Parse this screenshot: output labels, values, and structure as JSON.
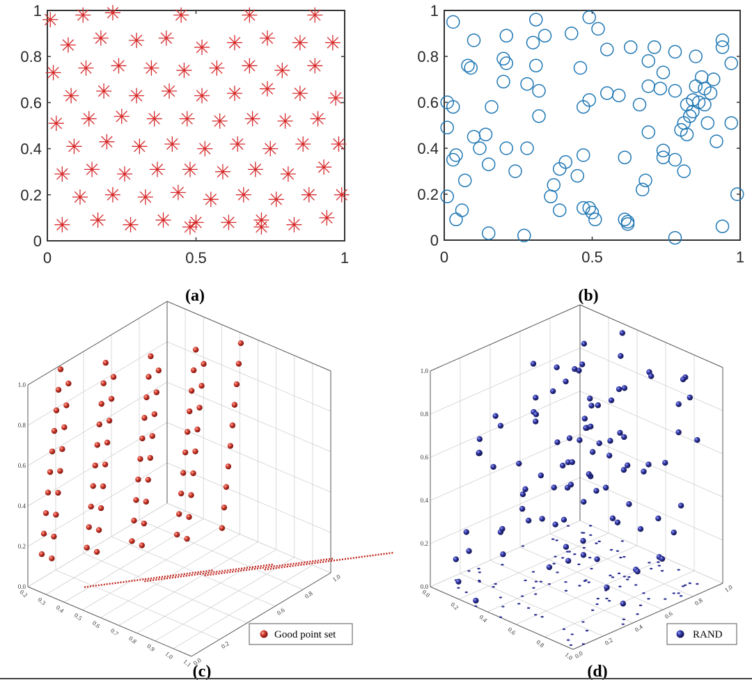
{
  "colors": {
    "star": "#d62728",
    "circle": "#1f77b4",
    "ball_red": "#c0261f",
    "ball_blue": "#2c2f8f"
  },
  "chart_data": [
    {
      "panel": "a",
      "caption": "(a)",
      "type": "scatter",
      "marker": "asterisk",
      "xlim": [
        0,
        1
      ],
      "ylim": [
        0,
        1
      ],
      "xticks": [
        "0",
        "0.5",
        "1"
      ],
      "yticks": [
        "0",
        "0.2",
        "0.4",
        "0.6",
        "0.8",
        "1"
      ],
      "points": [
        [
          0.01,
          0.96
        ],
        [
          0.12,
          0.98
        ],
        [
          0.22,
          0.99
        ],
        [
          0.45,
          0.98
        ],
        [
          0.68,
          0.98
        ],
        [
          0.9,
          0.98
        ],
        [
          0.07,
          0.85
        ],
        [
          0.18,
          0.88
        ],
        [
          0.3,
          0.87
        ],
        [
          0.4,
          0.88
        ],
        [
          0.52,
          0.84
        ],
        [
          0.63,
          0.86
        ],
        [
          0.74,
          0.88
        ],
        [
          0.85,
          0.86
        ],
        [
          0.96,
          0.86
        ],
        [
          0.02,
          0.73
        ],
        [
          0.13,
          0.75
        ],
        [
          0.24,
          0.76
        ],
        [
          0.35,
          0.75
        ],
        [
          0.46,
          0.74
        ],
        [
          0.57,
          0.75
        ],
        [
          0.68,
          0.76
        ],
        [
          0.79,
          0.74
        ],
        [
          0.9,
          0.76
        ],
        [
          0.08,
          0.63
        ],
        [
          0.19,
          0.65
        ],
        [
          0.3,
          0.63
        ],
        [
          0.41,
          0.65
        ],
        [
          0.52,
          0.63
        ],
        [
          0.63,
          0.64
        ],
        [
          0.74,
          0.66
        ],
        [
          0.85,
          0.64
        ],
        [
          0.97,
          0.62
        ],
        [
          0.03,
          0.51
        ],
        [
          0.14,
          0.53
        ],
        [
          0.25,
          0.54
        ],
        [
          0.36,
          0.53
        ],
        [
          0.47,
          0.53
        ],
        [
          0.58,
          0.52
        ],
        [
          0.69,
          0.53
        ],
        [
          0.8,
          0.52
        ],
        [
          0.91,
          0.53
        ],
        [
          0.09,
          0.41
        ],
        [
          0.2,
          0.43
        ],
        [
          0.31,
          0.41
        ],
        [
          0.42,
          0.42
        ],
        [
          0.53,
          0.4
        ],
        [
          0.64,
          0.42
        ],
        [
          0.75,
          0.4
        ],
        [
          0.86,
          0.42
        ],
        [
          0.98,
          0.42
        ],
        [
          0.05,
          0.29
        ],
        [
          0.15,
          0.31
        ],
        [
          0.26,
          0.29
        ],
        [
          0.37,
          0.31
        ],
        [
          0.48,
          0.31
        ],
        [
          0.59,
          0.3
        ],
        [
          0.7,
          0.31
        ],
        [
          0.81,
          0.29
        ],
        [
          0.93,
          0.32
        ],
        [
          0.11,
          0.19
        ],
        [
          0.22,
          0.2
        ],
        [
          0.33,
          0.19
        ],
        [
          0.44,
          0.21
        ],
        [
          0.55,
          0.18
        ],
        [
          0.66,
          0.2
        ],
        [
          0.77,
          0.18
        ],
        [
          0.88,
          0.2
        ],
        [
          0.99,
          0.2
        ],
        [
          0.05,
          0.07
        ],
        [
          0.17,
          0.09
        ],
        [
          0.28,
          0.07
        ],
        [
          0.39,
          0.09
        ],
        [
          0.5,
          0.08
        ],
        [
          0.61,
          0.08
        ],
        [
          0.72,
          0.09
        ],
        [
          0.83,
          0.07
        ],
        [
          0.94,
          0.1
        ],
        [
          0.48,
          0.06
        ],
        [
          0.72,
          0.06
        ]
      ]
    },
    {
      "panel": "b",
      "caption": "(b)",
      "type": "scatter",
      "marker": "circle",
      "xlim": [
        0,
        1
      ],
      "ylim": [
        0,
        1
      ],
      "xticks": [
        "0",
        "0.5",
        "1"
      ],
      "yticks": [
        "0",
        "0.2",
        "0.4",
        "0.6",
        "0.8",
        "1"
      ],
      "points": [
        [
          0.03,
          0.95
        ],
        [
          0.31,
          0.96
        ],
        [
          0.49,
          0.97
        ],
        [
          0.21,
          0.89
        ],
        [
          0.1,
          0.87
        ],
        [
          0.43,
          0.9
        ],
        [
          0.52,
          0.92
        ],
        [
          0.34,
          0.89
        ],
        [
          0.94,
          0.87
        ],
        [
          0.3,
          0.86
        ],
        [
          0.55,
          0.83
        ],
        [
          0.63,
          0.84
        ],
        [
          0.71,
          0.84
        ],
        [
          0.78,
          0.82
        ],
        [
          0.85,
          0.8
        ],
        [
          0.94,
          0.84
        ],
        [
          0.08,
          0.76
        ],
        [
          0.09,
          0.75
        ],
        [
          0.2,
          0.79
        ],
        [
          0.21,
          0.77
        ],
        [
          0.31,
          0.76
        ],
        [
          0.46,
          0.75
        ],
        [
          0.69,
          0.78
        ],
        [
          0.74,
          0.73
        ],
        [
          0.97,
          0.77
        ],
        [
          0.87,
          0.71
        ],
        [
          0.91,
          0.7
        ],
        [
          0.85,
          0.67
        ],
        [
          0.88,
          0.66
        ],
        [
          0.2,
          0.69
        ],
        [
          0.28,
          0.68
        ],
        [
          0.32,
          0.65
        ],
        [
          0.55,
          0.64
        ],
        [
          0.59,
          0.63
        ],
        [
          0.69,
          0.67
        ],
        [
          0.73,
          0.66
        ],
        [
          0.78,
          0.65
        ],
        [
          0.9,
          0.64
        ],
        [
          0.84,
          0.61
        ],
        [
          0.86,
          0.6
        ],
        [
          0.82,
          0.59
        ],
        [
          0.88,
          0.59
        ],
        [
          0.01,
          0.6
        ],
        [
          0.03,
          0.58
        ],
        [
          0.16,
          0.58
        ],
        [
          0.32,
          0.54
        ],
        [
          0.47,
          0.58
        ],
        [
          0.49,
          0.61
        ],
        [
          0.66,
          0.59
        ],
        [
          0.84,
          0.56
        ],
        [
          0.83,
          0.54
        ],
        [
          0.81,
          0.51
        ],
        [
          0.8,
          0.48
        ],
        [
          0.82,
          0.46
        ],
        [
          0.89,
          0.51
        ],
        [
          0.97,
          0.51
        ],
        [
          0.01,
          0.49
        ],
        [
          0.1,
          0.45
        ],
        [
          0.14,
          0.46
        ],
        [
          0.12,
          0.4
        ],
        [
          0.21,
          0.4
        ],
        [
          0.28,
          0.4
        ],
        [
          0.41,
          0.34
        ],
        [
          0.47,
          0.37
        ],
        [
          0.69,
          0.47
        ],
        [
          0.74,
          0.39
        ],
        [
          0.74,
          0.36
        ],
        [
          0.92,
          0.43
        ],
        [
          0.04,
          0.37
        ],
        [
          0.03,
          0.35
        ],
        [
          0.15,
          0.33
        ],
        [
          0.24,
          0.3
        ],
        [
          0.39,
          0.31
        ],
        [
          0.45,
          0.28
        ],
        [
          0.61,
          0.36
        ],
        [
          0.78,
          0.35
        ],
        [
          0.81,
          0.3
        ],
        [
          0.07,
          0.26
        ],
        [
          0.68,
          0.26
        ],
        [
          0.67,
          0.22
        ],
        [
          0.37,
          0.24
        ],
        [
          0.36,
          0.19
        ],
        [
          0.01,
          0.19
        ],
        [
          0.06,
          0.13
        ],
        [
          0.04,
          0.09
        ],
        [
          0.39,
          0.13
        ],
        [
          0.47,
          0.14
        ],
        [
          0.49,
          0.14
        ],
        [
          0.5,
          0.12
        ],
        [
          0.51,
          0.09
        ],
        [
          0.61,
          0.09
        ],
        [
          0.62,
          0.08
        ],
        [
          0.62,
          0.07
        ],
        [
          0.15,
          0.03
        ],
        [
          0.27,
          0.02
        ],
        [
          0.94,
          0.06
        ],
        [
          0.99,
          0.2
        ],
        [
          0.78,
          0.01
        ]
      ]
    },
    {
      "panel": "c",
      "caption": "(c)",
      "type": "scatter3d",
      "legend": "Good point set",
      "x_ticks": [
        "0.2",
        "0.3",
        "0.4",
        "0.5",
        "0.6",
        "0.7",
        "0.8",
        "0.9",
        "1.0",
        "1.1"
      ],
      "y_ticks": [
        "0.0",
        "0.2",
        "0.4",
        "0.6",
        "0.8",
        "1.0"
      ],
      "z_ticks": [
        "0.0",
        "0.2",
        "0.4",
        "0.6",
        "0.8",
        "1.0"
      ],
      "columns": [
        {
          "y": 0.95,
          "x": 0.2,
          "n": 10
        },
        {
          "y": 0.85,
          "x": 0.4,
          "n": 10
        },
        {
          "y": 0.75,
          "x": 0.6,
          "n": 10
        },
        {
          "y": 0.65,
          "x": 0.8,
          "n": 10
        },
        {
          "y": 0.55,
          "x": 1.0,
          "n": 10
        },
        {
          "y": 0.45,
          "x": 0.3,
          "n": 9
        },
        {
          "y": 0.35,
          "x": 0.5,
          "n": 9
        },
        {
          "y": 0.25,
          "x": 0.7,
          "n": 9
        },
        {
          "y": 0.15,
          "x": 0.9,
          "n": 9
        }
      ],
      "floor_lines": 4
    },
    {
      "panel": "d",
      "caption": "(d)",
      "type": "scatter3d",
      "legend": "RAND",
      "x_ticks": [
        "0.0",
        "0.2",
        "0.4",
        "0.6",
        "0.8",
        "1.0"
      ],
      "y_ticks": [
        "0.0",
        "0.2",
        "0.4",
        "0.6",
        "0.8",
        "1.0"
      ],
      "z_ticks": [
        "0.0",
        "0.2",
        "0.4",
        "0.6",
        "0.8",
        "1.0"
      ],
      "count": 100
    }
  ]
}
